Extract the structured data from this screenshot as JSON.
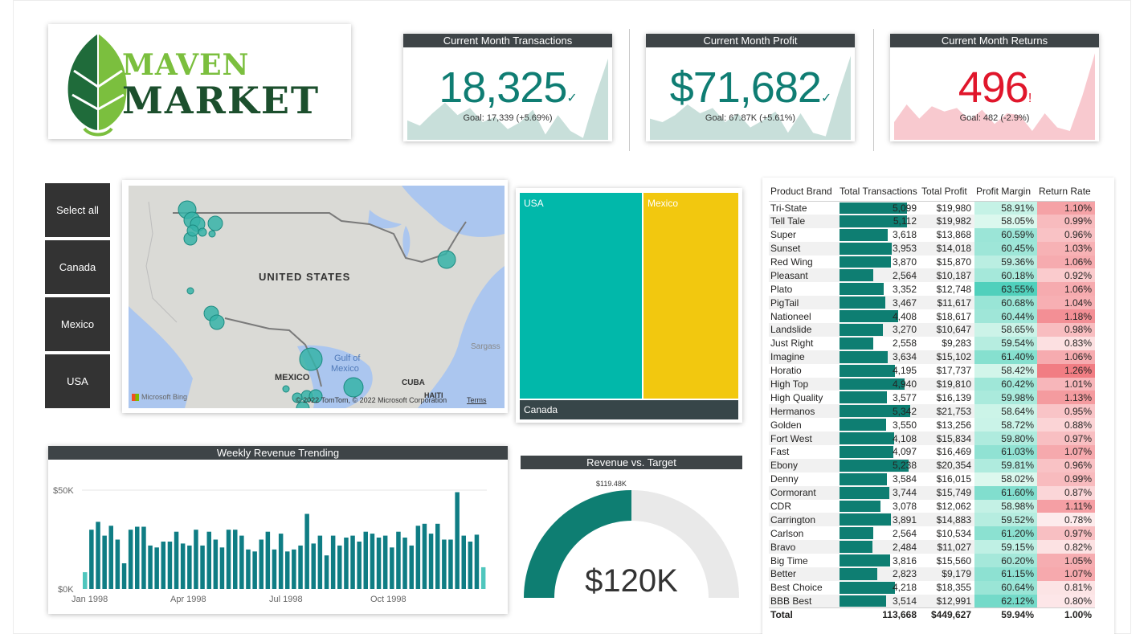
{
  "logo": {
    "line1": "MAVEN",
    "line2": "MARKET"
  },
  "kpis": [
    {
      "title": "Current Month Transactions",
      "value": "18,325",
      "indicator": "✓",
      "goal": "Goal: 17,339 (+5.69%)",
      "color": "#0f7d73",
      "spark_color": "#c8dfda",
      "spark": [
        0.22,
        0.16,
        0.3,
        0.42,
        0.28,
        0.36,
        0.2,
        0.26,
        0.12,
        0.2,
        0.34,
        0.06,
        0.28,
        0.1,
        0.02,
        0.5,
        0.92
      ]
    },
    {
      "title": "Current Month Profit",
      "value": "$71,682",
      "indicator": "✓",
      "goal": "Goal: 67.87K (+5.61%)",
      "color": "#0f7d73",
      "spark_color": "#c8dfda",
      "spark": [
        0.24,
        0.2,
        0.28,
        0.4,
        0.3,
        0.36,
        0.2,
        0.3,
        0.14,
        0.22,
        0.32,
        0.08,
        0.3,
        0.08,
        0.04,
        0.52,
        0.95
      ]
    },
    {
      "title": "Current Month Returns",
      "value": "496",
      "indicator": "!",
      "goal": "Goal: 482 (-2.9%)",
      "color": "#e0162b",
      "spark_color": "#f8c9cf",
      "spark": [
        0.2,
        0.4,
        0.24,
        0.38,
        0.32,
        0.36,
        0.22,
        0.34,
        0.18,
        0.3,
        0.28,
        0.1,
        0.3,
        0.14,
        0.1,
        0.5,
        0.98
      ]
    }
  ],
  "slicer": [
    "Select all",
    "Canada",
    "Mexico",
    "USA"
  ],
  "map": {
    "labels": {
      "us": "UNITED STATES",
      "mx": "MEXICO",
      "gulf1": "Gulf of",
      "gulf2": "Mexico",
      "cuba": "CUBA",
      "haiti": "HAITI",
      "sargasso": "Sargass"
    },
    "attribution": "© 2022 TomTom, © 2022 Microsoft Corporation",
    "terms": "Terms",
    "bing": "Microsoft Bing"
  },
  "treemap": {
    "usa": "USA",
    "mexico": "Mexico",
    "canada": "Canada",
    "colors": {
      "usa": "#01b8aa",
      "mexico": "#f2c80f",
      "canada": "#374649"
    }
  },
  "weekly": {
    "title": "Weekly Revenue Trending",
    "y_labels": [
      "$50K",
      "$0K"
    ],
    "x_labels": [
      "Jan 1998",
      "Apr 1998",
      "Jul 1998",
      "Oct 1998"
    ]
  },
  "chart_data": {
    "type": "bar",
    "title": "Weekly Revenue Trending",
    "ylim": [
      0,
      60000
    ],
    "x_ticks": [
      "Jan 1998",
      "Apr 1998",
      "Jul 1998",
      "Oct 1998"
    ],
    "values": [
      8500,
      30000,
      34000,
      27000,
      32000,
      25000,
      13000,
      30000,
      31500,
      31500,
      22000,
      21000,
      24000,
      24000,
      29000,
      23000,
      22000,
      30000,
      22000,
      29000,
      25000,
      21000,
      30000,
      30000,
      27000,
      20000,
      19000,
      25000,
      29000,
      20000,
      28000,
      19000,
      20000,
      22000,
      38000,
      23000,
      27000,
      17000,
      27000,
      22000,
      26000,
      27000,
      24000,
      29000,
      28000,
      26000,
      27000,
      21000,
      29000,
      26000,
      22000,
      32000,
      33000,
      28000,
      33000,
      25000,
      25000,
      49000,
      27000,
      24000,
      27500,
      11000
    ]
  },
  "gauge": {
    "title": "Revenue vs. Target",
    "value": "$120K",
    "target": "$119.48K",
    "fill": 0.5,
    "color": "#0e7e72",
    "track": "#e9e9e9"
  },
  "table": {
    "headers": [
      "Product Brand",
      "Total Transactions",
      "Total Profit",
      "Profit Margin",
      "Return Rate"
    ],
    "rows": [
      [
        "Tri-State",
        "5,099",
        "$19,980",
        "58.91%",
        "1.10%"
      ],
      [
        "Tell Tale",
        "5,112",
        "$19,982",
        "58.05%",
        "0.99%"
      ],
      [
        "Super",
        "3,618",
        "$13,868",
        "60.59%",
        "0.96%"
      ],
      [
        "Sunset",
        "3,953",
        "$14,018",
        "60.45%",
        "1.03%"
      ],
      [
        "Red Wing",
        "3,870",
        "$15,870",
        "59.36%",
        "1.06%"
      ],
      [
        "Pleasant",
        "2,564",
        "$10,187",
        "60.18%",
        "0.92%"
      ],
      [
        "Plato",
        "3,352",
        "$12,748",
        "63.55%",
        "1.06%"
      ],
      [
        "PigTail",
        "3,467",
        "$11,617",
        "60.68%",
        "1.04%"
      ],
      [
        "Nationeel",
        "4,408",
        "$18,617",
        "60.44%",
        "1.18%"
      ],
      [
        "Landslide",
        "3,270",
        "$10,647",
        "58.65%",
        "0.98%"
      ],
      [
        "Just Right",
        "2,558",
        "$9,283",
        "59.54%",
        "0.83%"
      ],
      [
        "Imagine",
        "3,634",
        "$15,102",
        "61.40%",
        "1.06%"
      ],
      [
        "Horatio",
        "4,195",
        "$17,737",
        "58.42%",
        "1.26%"
      ],
      [
        "High Top",
        "4,940",
        "$19,810",
        "60.42%",
        "1.01%"
      ],
      [
        "High Quality",
        "3,577",
        "$16,139",
        "59.98%",
        "1.13%"
      ],
      [
        "Hermanos",
        "5,342",
        "$21,753",
        "58.64%",
        "0.95%"
      ],
      [
        "Golden",
        "3,550",
        "$13,256",
        "58.72%",
        "0.88%"
      ],
      [
        "Fort West",
        "4,108",
        "$15,834",
        "59.80%",
        "0.97%"
      ],
      [
        "Fast",
        "4,097",
        "$16,469",
        "61.03%",
        "1.07%"
      ],
      [
        "Ebony",
        "5,238",
        "$20,354",
        "59.81%",
        "0.96%"
      ],
      [
        "Denny",
        "3,584",
        "$16,015",
        "58.02%",
        "0.99%"
      ],
      [
        "Cormorant",
        "3,744",
        "$15,749",
        "61.60%",
        "0.87%"
      ],
      [
        "CDR",
        "3,078",
        "$12,062",
        "58.98%",
        "1.11%"
      ],
      [
        "Carrington",
        "3,891",
        "$14,883",
        "59.52%",
        "0.78%"
      ],
      [
        "Carlson",
        "2,564",
        "$10,534",
        "61.20%",
        "0.97%"
      ],
      [
        "Bravo",
        "2,484",
        "$11,027",
        "59.15%",
        "0.82%"
      ],
      [
        "Big Time",
        "3,816",
        "$15,560",
        "60.20%",
        "1.05%"
      ],
      [
        "Better",
        "2,823",
        "$9,179",
        "61.15%",
        "1.07%"
      ],
      [
        "Best Choice",
        "4,218",
        "$18,355",
        "60.64%",
        "0.81%"
      ],
      [
        "BBB Best",
        "3,514",
        "$12,991",
        "62.12%",
        "0.80%"
      ]
    ],
    "total": [
      "Total",
      "113,668",
      "$449,627",
      "59.94%",
      "1.00%"
    ]
  }
}
